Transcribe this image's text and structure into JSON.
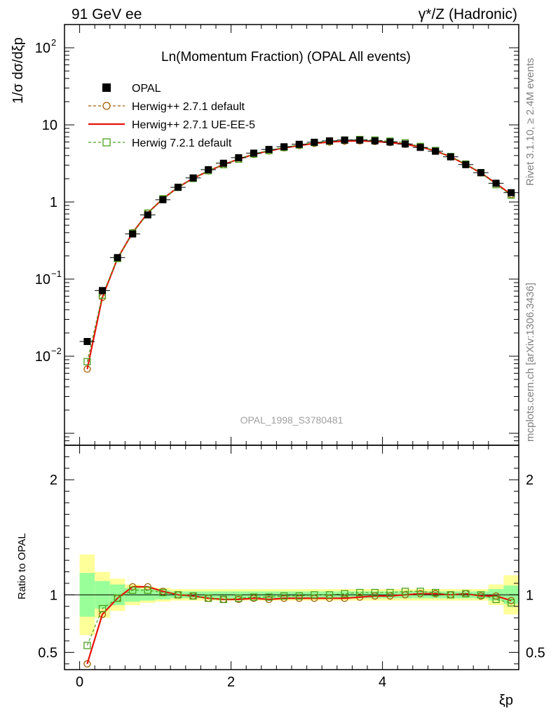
{
  "header": {
    "left": "91 GeV ee",
    "right_main": "γ*/Z (Hadronic)"
  },
  "side": {
    "rivet": "Rivet 3.1.10, ≥ 2.4M events",
    "mcplots": "mcplots.cern.ch [arXiv:1306.3436]"
  },
  "chart_data": {
    "type": "line",
    "title": "Ln(Momentum Fraction) (OPAL All events)",
    "analysis_id": "OPAL_1998_S3780481",
    "ylabel_main": "1/σ dσ/dξp",
    "ylabel_ratio": "Ratio to OPAL",
    "xlabel": "ξp",
    "xlim": [
      -0.2,
      5.8
    ],
    "ylim_main": [
      0.0007,
      200
    ],
    "ylog": true,
    "ylim_ratio": [
      0.35,
      2.3
    ],
    "xticks": [
      "0",
      "2",
      "4"
    ],
    "xtick_values": [
      0,
      2,
      4
    ],
    "yticks_main": [
      "10^-2",
      "10^-1",
      "1",
      "10",
      "10^2"
    ],
    "ytick_main_values": [
      0.01,
      0.1,
      1,
      10,
      100
    ],
    "yticks_ratio": [
      "0.5",
      "1",
      "2"
    ],
    "ytick_ratio_values": [
      0.5,
      1,
      2
    ],
    "legend_placement": "top-left",
    "x": [
      0.1,
      0.3,
      0.5,
      0.7,
      0.9,
      1.1,
      1.3,
      1.5,
      1.7,
      1.9,
      2.1,
      2.3,
      2.5,
      2.7,
      2.9,
      3.1,
      3.3,
      3.5,
      3.7,
      3.9,
      4.1,
      4.3,
      4.5,
      4.7,
      4.9,
      5.1,
      5.3,
      5.5,
      5.7
    ],
    "xerr": 0.1,
    "series": [
      {
        "name": "OPAL",
        "style": "data",
        "color": "#000000",
        "values": [
          0.0155,
          0.071,
          0.19,
          0.385,
          0.68,
          1.07,
          1.55,
          2.05,
          2.62,
          3.18,
          3.75,
          4.3,
          4.8,
          5.2,
          5.6,
          5.95,
          6.2,
          6.35,
          6.35,
          6.2,
          6.0,
          5.65,
          5.1,
          4.55,
          3.85,
          3.05,
          2.4,
          1.75,
          1.32
        ],
        "band_inner": [
          0.19,
          0.12,
          0.09,
          0.06,
          0.05,
          0.04,
          0.03,
          0.03,
          0.03,
          0.03,
          0.03,
          0.03,
          0.03,
          0.03,
          0.03,
          0.03,
          0.03,
          0.03,
          0.03,
          0.03,
          0.03,
          0.03,
          0.03,
          0.03,
          0.03,
          0.03,
          0.03,
          0.05,
          0.08
        ],
        "band_outer": [
          0.35,
          0.2,
          0.14,
          0.09,
          0.07,
          0.06,
          0.05,
          0.05,
          0.05,
          0.05,
          0.05,
          0.05,
          0.05,
          0.05,
          0.05,
          0.05,
          0.05,
          0.05,
          0.05,
          0.05,
          0.05,
          0.05,
          0.05,
          0.05,
          0.05,
          0.05,
          0.05,
          0.09,
          0.17
        ]
      },
      {
        "name": "Herwig++ 2.7.1 default",
        "style": "dashed-circle",
        "color": "#a05a00",
        "values": [
          0.0068,
          0.058,
          0.185,
          0.4,
          0.72,
          1.1,
          1.55,
          2.03,
          2.52,
          3.05,
          3.6,
          4.15,
          4.6,
          5.03,
          5.4,
          5.75,
          6.0,
          6.15,
          6.2,
          6.1,
          5.9,
          5.6,
          5.18,
          4.6,
          3.85,
          3.07,
          2.38,
          1.74,
          1.25
        ],
        "ratio": [
          0.4,
          0.83,
          0.97,
          1.07,
          1.07,
          1.03,
          1.0,
          0.99,
          0.97,
          0.96,
          0.96,
          0.97,
          0.96,
          0.97,
          0.97,
          0.97,
          0.97,
          0.97,
          0.98,
          0.99,
          0.99,
          1.0,
          1.01,
          1.01,
          1.0,
          1.01,
          0.99,
          0.99,
          0.95
        ]
      },
      {
        "name": "Herwig++ 2.7.1 UE-EE-5",
        "style": "solid",
        "color": "#e8120a",
        "values": [
          0.0068,
          0.058,
          0.185,
          0.4,
          0.72,
          1.1,
          1.55,
          2.03,
          2.52,
          3.05,
          3.6,
          4.15,
          4.6,
          5.03,
          5.4,
          5.75,
          6.0,
          6.15,
          6.2,
          6.1,
          5.9,
          5.6,
          5.18,
          4.6,
          3.85,
          3.07,
          2.38,
          1.74,
          1.25
        ],
        "ratio": [
          0.4,
          0.83,
          0.97,
          1.07,
          1.07,
          1.03,
          1.0,
          0.99,
          0.97,
          0.96,
          0.96,
          0.97,
          0.96,
          0.97,
          0.97,
          0.97,
          0.97,
          0.97,
          0.98,
          0.99,
          0.99,
          1.0,
          1.01,
          1.01,
          1.0,
          1.01,
          0.99,
          0.99,
          0.95
        ]
      },
      {
        "name": "Herwig 7.2.1 default",
        "style": "dashed-square",
        "color": "#4aa01e",
        "values": [
          0.0085,
          0.062,
          0.185,
          0.395,
          0.715,
          1.1,
          1.55,
          2.02,
          2.55,
          3.05,
          3.6,
          4.2,
          4.65,
          5.1,
          5.5,
          5.9,
          6.15,
          6.35,
          6.45,
          6.35,
          6.15,
          5.85,
          5.25,
          4.65,
          3.88,
          3.1,
          2.4,
          1.68,
          1.23
        ],
        "ratio": [
          0.56,
          0.88,
          0.97,
          1.04,
          1.04,
          1.02,
          1.0,
          0.99,
          0.97,
          0.96,
          0.97,
          0.98,
          0.98,
          0.99,
          0.99,
          1.0,
          1.0,
          1.01,
          1.02,
          1.02,
          1.02,
          1.03,
          1.03,
          1.02,
          1.0,
          1.01,
          1.0,
          0.96,
          0.93
        ]
      }
    ]
  }
}
